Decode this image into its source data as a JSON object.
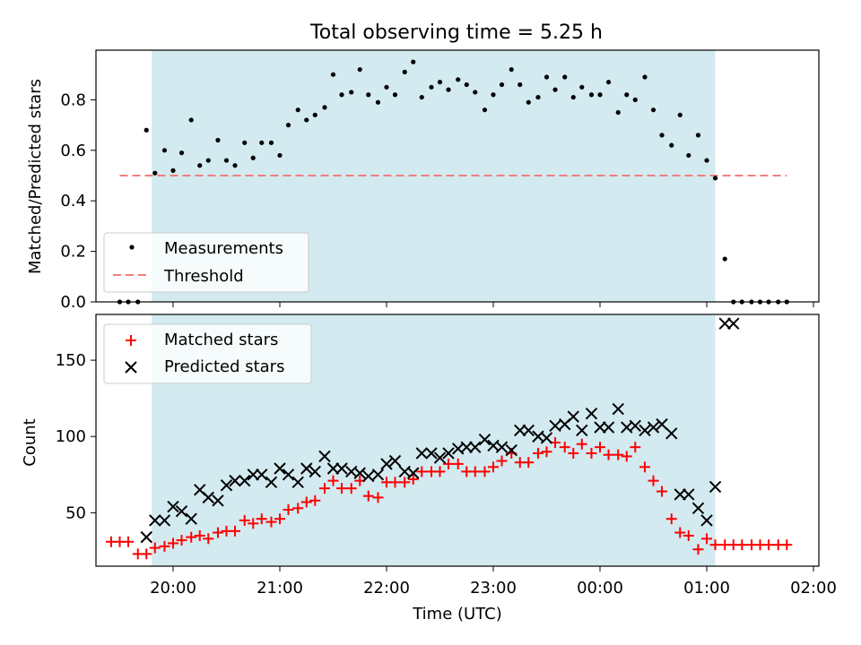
{
  "title": "Total observing time = 5.25 h",
  "colors": {
    "night_band": "#d3eaf0",
    "measurements": "#000000",
    "threshold": "#f07e7e",
    "matched": "#ff0000",
    "predicted": "#000000"
  },
  "chart_data": [
    {
      "type": "scatter",
      "panel": "top",
      "ylabel": "Matched/Predicted stars",
      "ylim": [
        0,
        1.0
      ],
      "yticks": [
        0.0,
        0.2,
        0.4,
        0.6,
        0.8
      ],
      "ytick_labels": [
        "0.0",
        "0.2",
        "0.4",
        "0.6",
        "0.8"
      ],
      "xlim_hours": [
        19.55,
        26.05
      ],
      "shaded_interval_hours": [
        19.8,
        25.08
      ],
      "threshold": 0.5,
      "threshold_x_hours": [
        19.5,
        25.75
      ],
      "legend": [
        "Measurements",
        "Threshold"
      ],
      "legend_placement": "lower-left",
      "series": [
        {
          "name": "Measurements",
          "x_hours": [
            19.5,
            19.58,
            19.67,
            19.75,
            19.83,
            19.92,
            20.0,
            20.08,
            20.17,
            20.25,
            20.33,
            20.42,
            20.5,
            20.58,
            20.67,
            20.75,
            20.83,
            20.92,
            21.0,
            21.08,
            21.17,
            21.25,
            21.33,
            21.42,
            21.5,
            21.58,
            21.67,
            21.75,
            21.83,
            21.92,
            22.0,
            22.08,
            22.17,
            22.25,
            22.33,
            22.42,
            22.5,
            22.58,
            22.67,
            22.75,
            22.83,
            22.92,
            23.0,
            23.08,
            23.17,
            23.25,
            23.33,
            23.42,
            23.5,
            23.58,
            23.67,
            23.75,
            23.83,
            23.92,
            24.0,
            24.08,
            24.17,
            24.25,
            24.33,
            24.42,
            24.5,
            24.58,
            24.67,
            24.75,
            24.83,
            24.92,
            25.0,
            25.08,
            25.17,
            25.25,
            25.33,
            25.42,
            25.5,
            25.58,
            25.67,
            25.75
          ],
          "y": [
            0.0,
            0.0,
            0.0,
            0.68,
            0.51,
            0.6,
            0.52,
            0.59,
            0.72,
            0.54,
            0.56,
            0.64,
            0.56,
            0.54,
            0.63,
            0.57,
            0.63,
            0.63,
            0.58,
            0.7,
            0.76,
            0.72,
            0.74,
            0.77,
            0.9,
            0.82,
            0.83,
            0.92,
            0.82,
            0.79,
            0.85,
            0.82,
            0.91,
            0.95,
            0.81,
            0.85,
            0.87,
            0.84,
            0.88,
            0.86,
            0.83,
            0.76,
            0.82,
            0.86,
            0.92,
            0.86,
            0.79,
            0.81,
            0.89,
            0.84,
            0.89,
            0.81,
            0.85,
            0.82,
            0.82,
            0.87,
            0.75,
            0.82,
            0.8,
            0.89,
            0.76,
            0.66,
            0.62,
            0.74,
            0.58,
            0.66,
            0.56,
            0.49,
            0.17,
            0.0,
            0.0,
            0.0,
            0.0,
            0.0,
            0.0,
            0.0
          ]
        }
      ]
    },
    {
      "type": "scatter",
      "panel": "bottom",
      "xlabel": "Time (UTC)",
      "ylabel": "Count",
      "ylim": [
        15,
        180
      ],
      "yticks": [
        50,
        100,
        150
      ],
      "ytick_labels": [
        "50",
        "100",
        "150"
      ],
      "xticks_hours": [
        20,
        21,
        22,
        23,
        24,
        25,
        26
      ],
      "xtick_labels": [
        "20:00",
        "21:00",
        "22:00",
        "23:00",
        "00:00",
        "01:00",
        "02:00"
      ],
      "xlim_hours": [
        19.55,
        26.05
      ],
      "shaded_interval_hours": [
        19.8,
        25.08
      ],
      "legend": [
        "Matched stars",
        "Predicted stars"
      ],
      "legend_placement": "upper-left",
      "series": [
        {
          "name": "Matched stars",
          "marker": "plus",
          "x_hours": [
            19.42,
            19.5,
            19.58,
            19.67,
            19.75,
            19.83,
            19.92,
            20.0,
            20.08,
            20.17,
            20.25,
            20.33,
            20.42,
            20.5,
            20.58,
            20.67,
            20.75,
            20.83,
            20.92,
            21.0,
            21.08,
            21.17,
            21.25,
            21.33,
            21.42,
            21.5,
            21.58,
            21.67,
            21.75,
            21.83,
            21.92,
            22.0,
            22.08,
            22.17,
            22.25,
            22.33,
            22.42,
            22.5,
            22.58,
            22.67,
            22.75,
            22.83,
            22.92,
            23.0,
            23.08,
            23.17,
            23.25,
            23.33,
            23.42,
            23.5,
            23.58,
            23.67,
            23.75,
            23.83,
            23.92,
            24.0,
            24.08,
            24.17,
            24.25,
            24.33,
            24.42,
            24.5,
            24.58,
            24.67,
            24.75,
            24.83,
            24.92,
            25.0,
            25.08,
            25.17,
            25.25,
            25.33,
            25.42,
            25.5,
            25.58,
            25.67,
            25.75
          ],
          "y": [
            31,
            31,
            31,
            23,
            23,
            27,
            28,
            30,
            32,
            34,
            35,
            33,
            37,
            38,
            38,
            45,
            43,
            46,
            44,
            46,
            52,
            53,
            57,
            58,
            66,
            71,
            66,
            66,
            71,
            61,
            60,
            70,
            70,
            70,
            72,
            77,
            77,
            77,
            82,
            82,
            77,
            77,
            77,
            80,
            84,
            89,
            83,
            83,
            89,
            90,
            96,
            93,
            89,
            95,
            89,
            93,
            88,
            88,
            87,
            93,
            80,
            71,
            64,
            46,
            37,
            35,
            26,
            33,
            29,
            29,
            29,
            29,
            29,
            29,
            29,
            29,
            29
          ]
        },
        {
          "name": "Predicted stars",
          "marker": "x",
          "x_hours": [
            19.75,
            19.83,
            19.92,
            20.0,
            20.08,
            20.17,
            20.25,
            20.33,
            20.42,
            20.5,
            20.58,
            20.67,
            20.75,
            20.83,
            20.92,
            21.0,
            21.08,
            21.17,
            21.25,
            21.33,
            21.42,
            21.5,
            21.58,
            21.67,
            21.75,
            21.83,
            21.92,
            22.0,
            22.08,
            22.17,
            22.25,
            22.33,
            22.42,
            22.5,
            22.58,
            22.67,
            22.75,
            22.83,
            22.92,
            23.0,
            23.08,
            23.17,
            23.25,
            23.33,
            23.42,
            23.5,
            23.58,
            23.67,
            23.75,
            23.83,
            23.92,
            24.0,
            24.08,
            24.17,
            24.25,
            24.33,
            24.42,
            24.5,
            24.58,
            24.67,
            24.75,
            24.83,
            24.92,
            25.0,
            25.08,
            25.17,
            25.25
          ],
          "y": [
            34,
            45,
            45,
            54,
            51,
            46,
            65,
            60,
            58,
            68,
            71,
            71,
            75,
            75,
            70,
            79,
            75,
            70,
            79,
            77,
            87,
            79,
            79,
            77,
            76,
            74,
            75,
            82,
            84,
            77,
            76,
            89,
            89,
            86,
            89,
            92,
            93,
            93,
            98,
            94,
            93,
            91,
            104,
            104,
            100,
            99,
            107,
            108,
            113,
            104,
            115,
            106,
            106,
            118,
            106,
            107,
            104,
            106,
            108,
            102,
            62,
            62,
            53,
            45,
            67,
            174,
            174
          ]
        }
      ]
    }
  ]
}
